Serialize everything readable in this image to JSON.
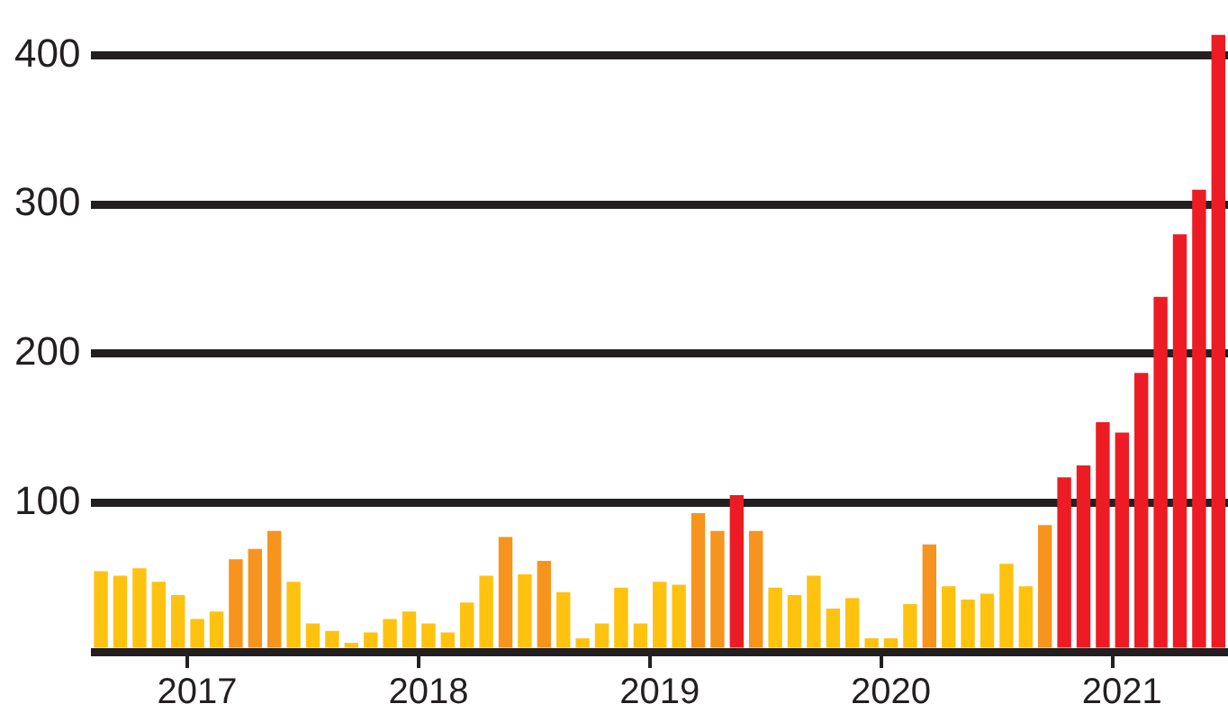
{
  "chart_data": {
    "type": "bar",
    "categories": [
      null,
      null,
      null,
      null,
      null,
      "2017",
      null,
      null,
      null,
      null,
      null,
      null,
      null,
      null,
      null,
      null,
      null,
      "2018",
      null,
      null,
      null,
      null,
      null,
      null,
      null,
      null,
      null,
      null,
      null,
      "2019",
      null,
      null,
      null,
      null,
      null,
      null,
      null,
      null,
      null,
      null,
      null,
      "2020",
      null,
      null,
      null,
      null,
      null,
      null,
      null,
      null,
      null,
      null,
      null,
      "2021",
      null,
      null,
      null,
      null,
      null
    ],
    "values": [
      54,
      51,
      56,
      47,
      38,
      22,
      27,
      62,
      69,
      81,
      47,
      19,
      14,
      6,
      13,
      22,
      27,
      19,
      13,
      33,
      51,
      77,
      52,
      61,
      40,
      9,
      19,
      43,
      19,
      47,
      45,
      93,
      81,
      105,
      81,
      43,
      38,
      51,
      29,
      36,
      9,
      9,
      32,
      72,
      44,
      35,
      39,
      59,
      44,
      85,
      117,
      125,
      154,
      147,
      187,
      238,
      280,
      310,
      414
    ],
    "colors": [
      "#ffc20e",
      "#ffc20e",
      "#ffc20e",
      "#ffc20e",
      "#ffc20e",
      "#ffc20e",
      "#ffc20e",
      "#f7941d",
      "#f7941d",
      "#f7941d",
      "#ffc20e",
      "#ffc20e",
      "#ffc20e",
      "#ffc20e",
      "#ffc20e",
      "#ffc20e",
      "#ffc20e",
      "#ffc20e",
      "#ffc20e",
      "#ffc20e",
      "#ffc20e",
      "#f7941d",
      "#ffc20e",
      "#f7941d",
      "#ffc20e",
      "#ffc20e",
      "#ffc20e",
      "#ffc20e",
      "#ffc20e",
      "#ffc20e",
      "#ffc20e",
      "#f7941d",
      "#f7941d",
      "#ed1c24",
      "#f7941d",
      "#ffc20e",
      "#ffc20e",
      "#ffc20e",
      "#ffc20e",
      "#ffc20e",
      "#ffc20e",
      "#ffc20e",
      "#ffc20e",
      "#f7941d",
      "#ffc20e",
      "#ffc20e",
      "#ffc20e",
      "#ffc20e",
      "#ffc20e",
      "#f7941d",
      "#ed1c24",
      "#ed1c24",
      "#ed1c24",
      "#ed1c24",
      "#ed1c24",
      "#ed1c24",
      "#ed1c24",
      "#ed1c24",
      "#ed1c24"
    ],
    "yticks": [
      {
        "value": 0,
        "label": null
      },
      100,
      200,
      300,
      400
    ],
    "ylim": [
      0,
      414
    ],
    "grid": "y",
    "legend": false
  }
}
